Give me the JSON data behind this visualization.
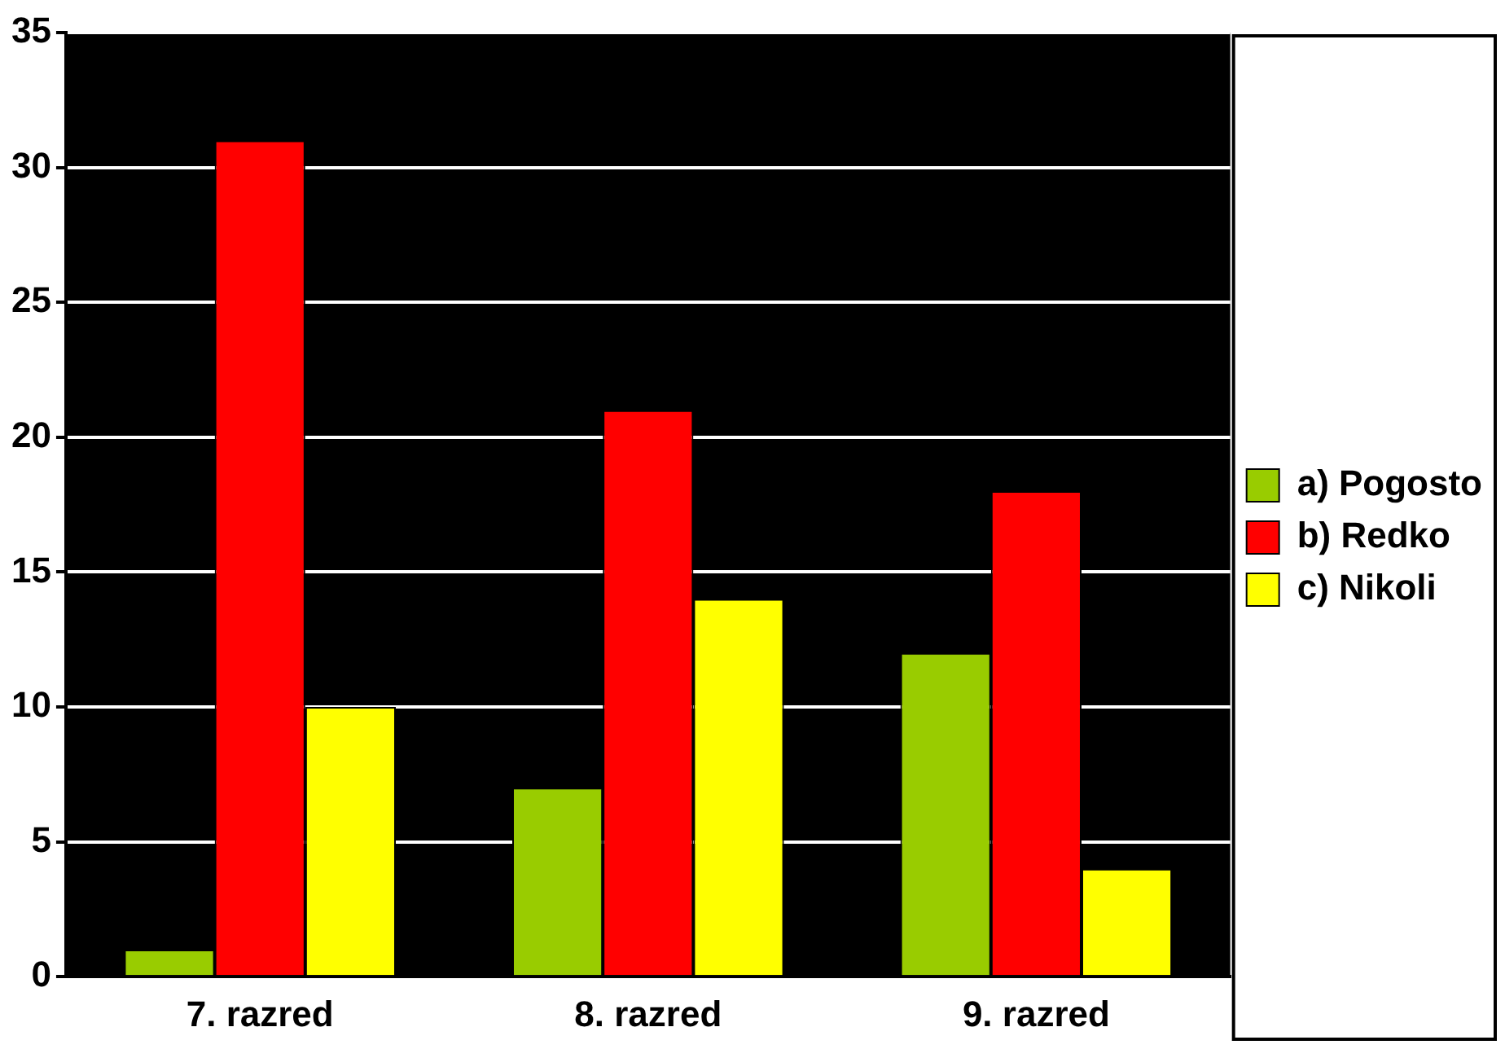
{
  "chart_data": {
    "type": "bar",
    "categories": [
      "7. razred",
      "8. razred",
      "9. razred"
    ],
    "series": [
      {
        "name": "a) Pogosto",
        "color": "#99cc00",
        "values": [
          1,
          7,
          12
        ]
      },
      {
        "name": "b) Redko",
        "color": "#ff0000",
        "values": [
          31,
          21,
          18
        ]
      },
      {
        "name": "c) Nikoli",
        "color": "#ffff00",
        "values": [
          10,
          14,
          4
        ]
      }
    ],
    "ylim": [
      0,
      35
    ],
    "yticks": [
      0,
      5,
      10,
      15,
      20,
      25,
      30,
      35
    ],
    "grid": "y",
    "legend": "right"
  }
}
